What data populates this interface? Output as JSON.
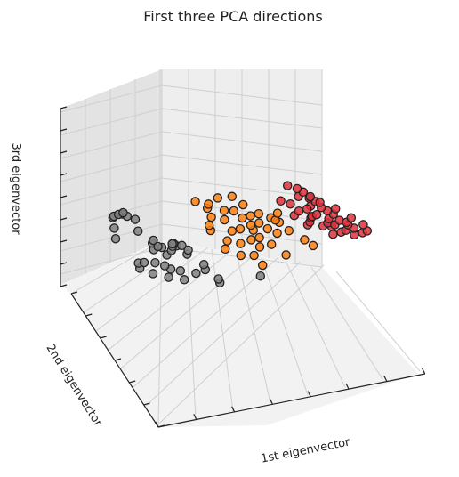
{
  "chart_data": {
    "type": "scatter",
    "title": "First three PCA directions",
    "xlabel": "1st eigenvector",
    "ylabel": "2nd eigenvector",
    "zlabel": "3rd eigenvector",
    "grid": true,
    "projection": "3d",
    "series": [
      {
        "color": "#808080",
        "points": [
          [
            -3.1,
            0.4,
            0.7
          ],
          [
            -3.0,
            0.5,
            0.72
          ],
          [
            -2.9,
            0.3,
            0.71
          ],
          [
            -2.8,
            0.6,
            0.74
          ],
          [
            -2.7,
            0.4,
            0.7
          ],
          [
            -3.2,
            0.2,
            0.6
          ],
          [
            -2.6,
            0.1,
            0.55
          ],
          [
            -3.3,
            0.0,
            0.5
          ],
          [
            -2.6,
            0.7,
            0.76
          ],
          [
            -2.4,
            0.5,
            0.68
          ],
          [
            -2.2,
            0.1,
            0.45
          ],
          [
            -2.0,
            0.0,
            0.4
          ],
          [
            -2.1,
            0.2,
            0.48
          ],
          [
            -1.9,
            0.3,
            0.44
          ],
          [
            -2.3,
            -0.1,
            0.38
          ],
          [
            -2.5,
            0.0,
            0.3
          ],
          [
            -2.0,
            -0.2,
            0.32
          ],
          [
            -1.8,
            -0.1,
            0.36
          ],
          [
            -2.4,
            -0.3,
            0.26
          ],
          [
            -2.2,
            -0.4,
            0.22
          ],
          [
            -1.7,
            0.0,
            0.4
          ],
          [
            -1.6,
            0.1,
            0.43
          ],
          [
            -2.1,
            -0.5,
            0.18
          ],
          [
            -1.9,
            -0.6,
            0.15
          ],
          [
            -2.6,
            -0.5,
            0.16
          ],
          [
            -2.8,
            -0.2,
            0.28
          ],
          [
            -1.5,
            -0.3,
            0.3
          ],
          [
            -2.3,
            -0.7,
            0.1
          ],
          [
            -2.0,
            -0.9,
            0.05
          ],
          [
            -1.6,
            -0.8,
            0.1
          ],
          [
            -1.2,
            -0.6,
            0.14
          ],
          [
            -1.4,
            -0.2,
            0.34
          ],
          [
            -1.8,
            -0.3,
            0.37
          ],
          [
            -1.3,
            0.2,
            0.42
          ],
          [
            -1.0,
            -0.9,
            0.0
          ],
          [
            -0.9,
            -0.7,
            0.05
          ],
          [
            -1.5,
            0.3,
            0.45
          ],
          [
            -2.9,
            -0.4,
            0.22
          ],
          [
            -1.1,
            -0.4,
            0.2
          ],
          [
            0.0,
            -1.1,
            0.0
          ]
        ]
      },
      {
        "color": "#ff7f0e",
        "points": [
          [
            -0.5,
            0.8,
            0.8
          ],
          [
            -0.2,
            0.7,
            0.76
          ],
          [
            0.2,
            0.9,
            0.82
          ],
          [
            0.6,
            0.9,
            0.82
          ],
          [
            -0.3,
            0.6,
            0.72
          ],
          [
            0.3,
            0.4,
            0.66
          ],
          [
            0.1,
            0.5,
            0.68
          ],
          [
            -0.4,
            0.3,
            0.62
          ],
          [
            -0.1,
            0.2,
            0.58
          ],
          [
            0.4,
            0.2,
            0.58
          ],
          [
            0.7,
            0.3,
            0.6
          ],
          [
            1.0,
            0.4,
            0.62
          ],
          [
            1.2,
            0.2,
            0.56
          ],
          [
            0.8,
            0.1,
            0.52
          ],
          [
            0.5,
            0.0,
            0.5
          ],
          [
            0.2,
            0.0,
            0.48
          ],
          [
            -0.1,
            -0.1,
            0.46
          ],
          [
            0.9,
            -0.1,
            0.45
          ],
          [
            1.3,
            0.0,
            0.5
          ],
          [
            1.1,
            -0.2,
            0.4
          ],
          [
            0.6,
            -0.2,
            0.38
          ],
          [
            0.3,
            -0.3,
            0.36
          ],
          [
            0.0,
            -0.3,
            0.34
          ],
          [
            -0.3,
            -0.2,
            0.38
          ],
          [
            1.5,
            -0.1,
            0.42
          ],
          [
            0.8,
            -0.4,
            0.3
          ],
          [
            0.4,
            -0.5,
            0.28
          ],
          [
            1.4,
            0.3,
            0.55
          ],
          [
            1.8,
            -0.3,
            0.32
          ],
          [
            1.9,
            -0.5,
            0.25
          ],
          [
            -0.5,
            -0.4,
            0.3
          ],
          [
            0.1,
            -0.7,
            0.2
          ],
          [
            1.0,
            -0.7,
            0.18
          ],
          [
            -0.6,
            0.1,
            0.54
          ],
          [
            0.7,
            0.6,
            0.72
          ],
          [
            -0.2,
            -0.6,
            0.22
          ],
          [
            1.6,
            0.5,
            0.62
          ],
          [
            0.5,
            -0.1,
            0.45
          ],
          [
            -0.7,
            -0.1,
            0.48
          ],
          [
            0.2,
            -0.9,
            0.1
          ]
        ]
      },
      {
        "color": "#e0303a",
        "points": [
          [
            2.3,
            1.1,
            0.88
          ],
          [
            2.5,
            1.0,
            0.84
          ],
          [
            2.6,
            0.9,
            0.8
          ],
          [
            2.4,
            0.8,
            0.76
          ],
          [
            2.7,
            0.8,
            0.74
          ],
          [
            2.8,
            0.7,
            0.7
          ],
          [
            2.6,
            0.6,
            0.66
          ],
          [
            2.9,
            0.6,
            0.64
          ],
          [
            3.0,
            0.5,
            0.6
          ],
          [
            2.7,
            0.5,
            0.58
          ],
          [
            2.5,
            0.4,
            0.56
          ],
          [
            3.1,
            0.4,
            0.56
          ],
          [
            2.9,
            0.3,
            0.52
          ],
          [
            3.2,
            0.3,
            0.5
          ],
          [
            2.8,
            0.2,
            0.48
          ],
          [
            3.0,
            0.2,
            0.46
          ],
          [
            3.3,
            0.1,
            0.44
          ],
          [
            2.6,
            0.1,
            0.45
          ],
          [
            3.4,
            0.0,
            0.4
          ],
          [
            3.1,
            -0.1,
            0.38
          ],
          [
            2.9,
            -0.2,
            0.36
          ],
          [
            3.5,
            -0.2,
            0.34
          ],
          [
            3.6,
            0.4,
            0.52
          ],
          [
            3.7,
            -0.1,
            0.36
          ],
          [
            2.4,
            0.3,
            0.54
          ],
          [
            2.2,
            0.5,
            0.62
          ],
          [
            2.3,
            0.2,
            0.5
          ],
          [
            2.1,
            0.7,
            0.7
          ],
          [
            2.0,
            0.4,
            0.58
          ],
          [
            3.3,
            0.6,
            0.62
          ],
          [
            3.2,
            -0.3,
            0.32
          ],
          [
            2.7,
            -0.1,
            0.42
          ],
          [
            3.8,
            0.2,
            0.44
          ],
          [
            2.5,
            0.6,
            0.64
          ],
          [
            3.0,
            0.8,
            0.7
          ],
          [
            2.8,
            0.9,
            0.76
          ],
          [
            1.9,
            0.8,
            0.74
          ],
          [
            3.4,
            0.3,
            0.48
          ],
          [
            2.6,
            -0.3,
            0.34
          ],
          [
            2.1,
            0.0,
            0.46
          ]
        ]
      }
    ]
  }
}
